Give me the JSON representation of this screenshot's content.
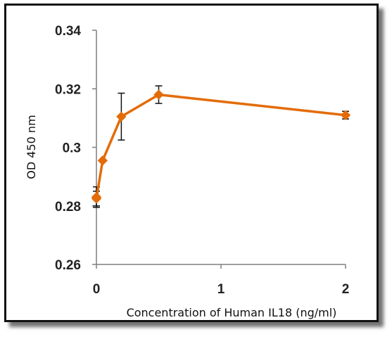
{
  "chart_data": {
    "type": "line",
    "title": "",
    "xlabel": "Concentration of Human IL18 (ng/ml)",
    "ylabel": "OD 450 nm",
    "xlim": [
      0,
      2
    ],
    "ylim": [
      0.26,
      0.34
    ],
    "x_ticks": [
      0,
      1,
      2
    ],
    "x_tick_labels": [
      "0",
      "1",
      "2"
    ],
    "y_ticks": [
      0.26,
      0.28,
      0.3,
      0.32,
      0.34
    ],
    "y_tick_labels": [
      "0.26",
      "0.28",
      "0.3",
      "0.32",
      "0.34"
    ],
    "grid": false,
    "legend": "none",
    "series": [
      {
        "color": "#E36C09",
        "marker": "diamond",
        "x": [
          0,
          0,
          0.05,
          0.2,
          0.5,
          2
        ],
        "y": [
          0.283,
          0.2825,
          0.2955,
          0.3105,
          0.318,
          0.311
        ],
        "error": [
          0.0035,
          0.0025,
          0,
          0.008,
          0.003,
          0.0013
        ]
      }
    ]
  }
}
